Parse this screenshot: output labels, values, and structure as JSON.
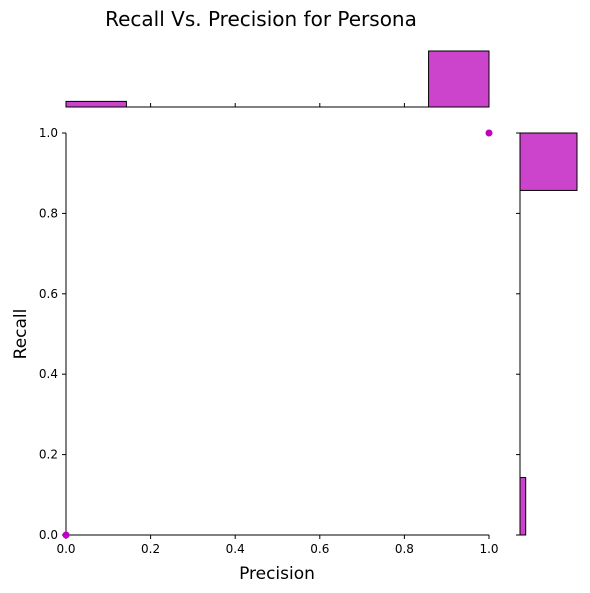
{
  "chart_data": {
    "type": "scatter",
    "title": "Recall Vs. Precision for Persona",
    "xlabel": "Precision",
    "ylabel": "Recall",
    "xlim": [
      0,
      1
    ],
    "ylim": [
      0,
      1
    ],
    "xticks": [
      "0.0",
      "0.2",
      "0.4",
      "0.6",
      "0.8",
      "1.0"
    ],
    "yticks": [
      "0.0",
      "0.2",
      "0.4",
      "0.6",
      "0.8",
      "1.0"
    ],
    "grid": false,
    "point_color": "#c000c0",
    "hist_color": "#cc44cc",
    "points": [
      {
        "x": 0.0,
        "y": 0.0
      },
      {
        "x": 1.0,
        "y": 1.0
      }
    ],
    "marginal_x": {
      "bins": [
        {
          "start": 0.0,
          "end": 0.142857,
          "count": 1
        },
        {
          "start": 0.857143,
          "end": 1.0,
          "count": 10
        }
      ],
      "max_count": 10
    },
    "marginal_y": {
      "bins": [
        {
          "start": 0.0,
          "end": 0.142857,
          "count": 1
        },
        {
          "start": 0.857143,
          "end": 1.0,
          "count": 10
        }
      ],
      "max_count": 10
    }
  }
}
